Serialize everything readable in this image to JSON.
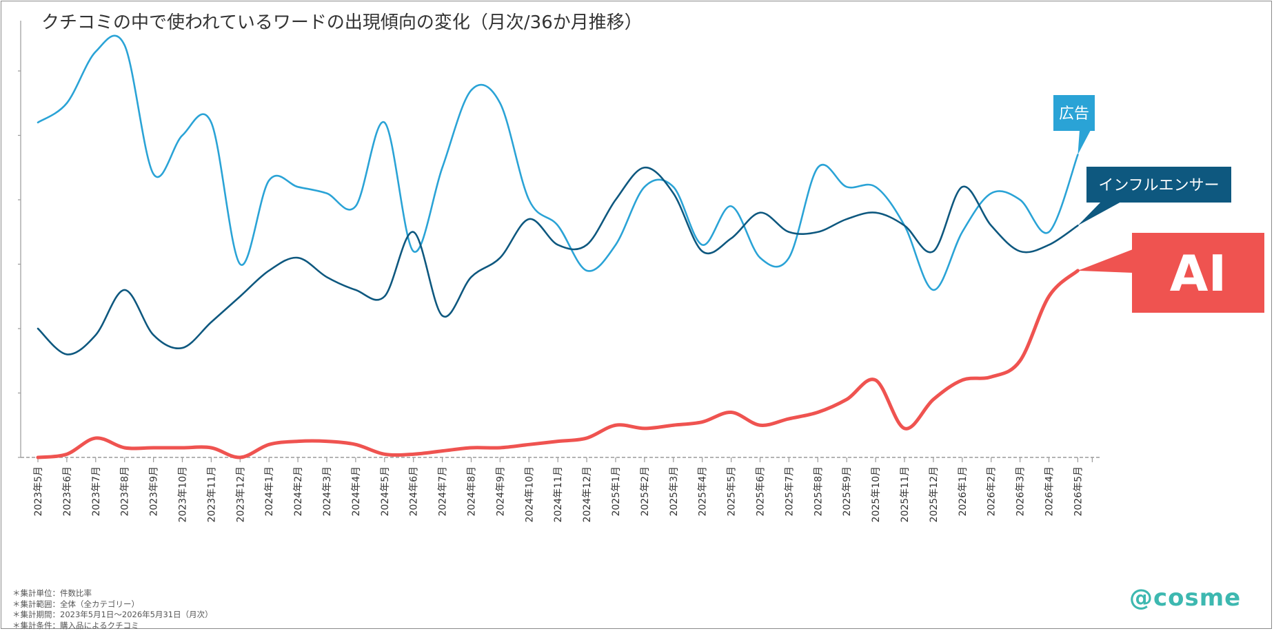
{
  "chart_data": {
    "type": "line",
    "title": "クチコミの中で使われているワードの出現傾向の変化（月次/36か月推移）",
    "xlabel": "",
    "ylabel": "",
    "ylim": [
      0,
      7
    ],
    "grid": false,
    "categories": [
      "2023年5月",
      "2023年6月",
      "2023年7月",
      "2023年8月",
      "2023年9月",
      "2023年10月",
      "2023年11月",
      "2023年12月",
      "2024年1月",
      "2024年2月",
      "2024年3月",
      "2024年4月",
      "2024年5月",
      "2024年6月",
      "2024年7月",
      "2024年8月",
      "2024年9月",
      "2024年10月",
      "2024年11月",
      "2024年12月",
      "2025年1月",
      "2025年2月",
      "2025年3月",
      "2025年4月",
      "2025年5月",
      "2025年6月",
      "2025年7月",
      "2025年8月",
      "2025年9月",
      "2025年10月",
      "2025年11月",
      "2025年12月",
      "2026年1月",
      "2026年2月",
      "2026年3月",
      "2026年4月",
      "2026年5月"
    ],
    "series": [
      {
        "name": "広告",
        "color": "#2aa3d6",
        "values": [
          5.2,
          5.5,
          6.3,
          6.4,
          4.4,
          5.0,
          5.2,
          3.0,
          4.3,
          4.2,
          4.1,
          3.9,
          5.2,
          3.2,
          4.5,
          5.7,
          5.5,
          4.0,
          3.6,
          2.9,
          3.3,
          4.2,
          4.2,
          3.3,
          3.9,
          3.1,
          3.1,
          4.5,
          4.2,
          4.2,
          3.6,
          2.6,
          3.5,
          4.1,
          4.0,
          3.5,
          4.7
        ]
      },
      {
        "name": "インフルエンサー",
        "color": "#0e587f",
        "values": [
          2.0,
          1.6,
          1.9,
          2.6,
          1.9,
          1.7,
          2.1,
          2.5,
          2.9,
          3.1,
          2.8,
          2.6,
          2.5,
          3.5,
          2.2,
          2.8,
          3.1,
          3.7,
          3.3,
          3.3,
          4.0,
          4.5,
          4.1,
          3.2,
          3.4,
          3.8,
          3.5,
          3.5,
          3.7,
          3.8,
          3.6,
          3.2,
          4.2,
          3.6,
          3.2,
          3.3,
          3.6
        ]
      },
      {
        "name": "AI",
        "color": "#ef5350",
        "values": [
          0.0,
          0.05,
          0.3,
          0.15,
          0.15,
          0.15,
          0.15,
          0.0,
          0.2,
          0.25,
          0.25,
          0.2,
          0.05,
          0.05,
          0.1,
          0.15,
          0.15,
          0.2,
          0.25,
          0.3,
          0.5,
          0.45,
          0.5,
          0.55,
          0.7,
          0.5,
          0.6,
          0.7,
          0.9,
          1.2,
          0.45,
          0.9,
          1.2,
          1.25,
          1.5,
          2.5,
          2.9
        ]
      }
    ]
  },
  "notes": [
    "＊集計単位：件数比率",
    "＊集計範囲：全体（全カテゴリー）",
    "＊集計期間：2023年5月1日～2026年5月31日（月次）",
    "＊集計条件：購入品によるクチコミ"
  ],
  "logo": {
    "text": "@cosme",
    "color": "#3db8b0"
  },
  "colors": {
    "axis": "#9a9a9a",
    "tick_text": "#333333"
  }
}
